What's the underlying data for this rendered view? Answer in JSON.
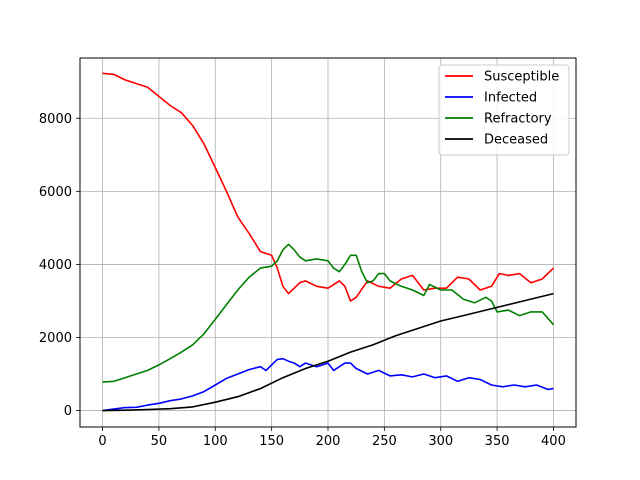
{
  "chart_data": {
    "type": "line",
    "title": "",
    "xlabel": "",
    "ylabel": "",
    "xlim": [
      -20,
      420
    ],
    "ylim": [
      -450,
      9650
    ],
    "xticks": [
      0,
      50,
      100,
      150,
      200,
      250,
      300,
      350,
      400
    ],
    "yticks": [
      0,
      2000,
      4000,
      6000,
      8000
    ],
    "grid": true,
    "legend_position": "top-right",
    "series": [
      {
        "name": "Susceptible",
        "color": "#ff0000",
        "points": [
          [
            0,
            9230
          ],
          [
            10,
            9200
          ],
          [
            20,
            9050
          ],
          [
            30,
            8950
          ],
          [
            40,
            8850
          ],
          [
            50,
            8600
          ],
          [
            60,
            8350
          ],
          [
            70,
            8150
          ],
          [
            80,
            7800
          ],
          [
            90,
            7300
          ],
          [
            100,
            6650
          ],
          [
            110,
            6000
          ],
          [
            120,
            5300
          ],
          [
            130,
            4850
          ],
          [
            140,
            4350
          ],
          [
            150,
            4250
          ],
          [
            155,
            3900
          ],
          [
            160,
            3400
          ],
          [
            165,
            3200
          ],
          [
            170,
            3350
          ],
          [
            175,
            3500
          ],
          [
            180,
            3550
          ],
          [
            190,
            3400
          ],
          [
            200,
            3350
          ],
          [
            210,
            3550
          ],
          [
            215,
            3400
          ],
          [
            220,
            3000
          ],
          [
            225,
            3100
          ],
          [
            235,
            3550
          ],
          [
            245,
            3400
          ],
          [
            255,
            3350
          ],
          [
            265,
            3600
          ],
          [
            275,
            3700
          ],
          [
            285,
            3300
          ],
          [
            295,
            3350
          ],
          [
            305,
            3350
          ],
          [
            315,
            3650
          ],
          [
            325,
            3600
          ],
          [
            335,
            3300
          ],
          [
            345,
            3400
          ],
          [
            352,
            3750
          ],
          [
            360,
            3700
          ],
          [
            370,
            3750
          ],
          [
            380,
            3500
          ],
          [
            390,
            3600
          ],
          [
            400,
            3900
          ]
        ]
      },
      {
        "name": "Infected",
        "color": "#0000ff",
        "points": [
          [
            0,
            0
          ],
          [
            10,
            40
          ],
          [
            20,
            80
          ],
          [
            30,
            90
          ],
          [
            40,
            150
          ],
          [
            50,
            200
          ],
          [
            60,
            270
          ],
          [
            70,
            320
          ],
          [
            80,
            400
          ],
          [
            90,
            520
          ],
          [
            100,
            700
          ],
          [
            110,
            880
          ],
          [
            120,
            1000
          ],
          [
            130,
            1120
          ],
          [
            140,
            1200
          ],
          [
            145,
            1100
          ],
          [
            150,
            1250
          ],
          [
            155,
            1400
          ],
          [
            160,
            1420
          ],
          [
            165,
            1350
          ],
          [
            170,
            1300
          ],
          [
            175,
            1200
          ],
          [
            180,
            1300
          ],
          [
            190,
            1200
          ],
          [
            200,
            1300
          ],
          [
            205,
            1100
          ],
          [
            215,
            1300
          ],
          [
            220,
            1300
          ],
          [
            225,
            1150
          ],
          [
            235,
            1000
          ],
          [
            245,
            1100
          ],
          [
            255,
            950
          ],
          [
            265,
            980
          ],
          [
            275,
            920
          ],
          [
            285,
            1000
          ],
          [
            295,
            900
          ],
          [
            305,
            950
          ],
          [
            315,
            800
          ],
          [
            325,
            900
          ],
          [
            335,
            850
          ],
          [
            345,
            700
          ],
          [
            355,
            650
          ],
          [
            365,
            700
          ],
          [
            375,
            650
          ],
          [
            385,
            700
          ],
          [
            395,
            580
          ],
          [
            400,
            600
          ]
        ]
      },
      {
        "name": "Refractory",
        "color": "#008000",
        "points": [
          [
            0,
            780
          ],
          [
            10,
            800
          ],
          [
            20,
            900
          ],
          [
            30,
            1000
          ],
          [
            40,
            1100
          ],
          [
            50,
            1250
          ],
          [
            60,
            1420
          ],
          [
            70,
            1600
          ],
          [
            80,
            1800
          ],
          [
            90,
            2100
          ],
          [
            100,
            2500
          ],
          [
            110,
            2900
          ],
          [
            120,
            3300
          ],
          [
            130,
            3650
          ],
          [
            140,
            3900
          ],
          [
            150,
            3950
          ],
          [
            155,
            4100
          ],
          [
            160,
            4400
          ],
          [
            165,
            4550
          ],
          [
            170,
            4400
          ],
          [
            175,
            4200
          ],
          [
            180,
            4100
          ],
          [
            190,
            4150
          ],
          [
            200,
            4100
          ],
          [
            205,
            3900
          ],
          [
            210,
            3800
          ],
          [
            215,
            4000
          ],
          [
            220,
            4250
          ],
          [
            225,
            4250
          ],
          [
            230,
            3800
          ],
          [
            235,
            3500
          ],
          [
            240,
            3550
          ],
          [
            245,
            3750
          ],
          [
            250,
            3750
          ],
          [
            255,
            3550
          ],
          [
            265,
            3400
          ],
          [
            275,
            3300
          ],
          [
            285,
            3150
          ],
          [
            290,
            3450
          ],
          [
            300,
            3300
          ],
          [
            310,
            3300
          ],
          [
            320,
            3050
          ],
          [
            330,
            2950
          ],
          [
            340,
            3100
          ],
          [
            345,
            3000
          ],
          [
            350,
            2700
          ],
          [
            360,
            2750
          ],
          [
            370,
            2600
          ],
          [
            380,
            2700
          ],
          [
            390,
            2700
          ],
          [
            400,
            2350
          ]
        ]
      },
      {
        "name": "Deceased",
        "color": "#000000",
        "points": [
          [
            0,
            0
          ],
          [
            20,
            10
          ],
          [
            40,
            30
          ],
          [
            60,
            50
          ],
          [
            80,
            100
          ],
          [
            100,
            230
          ],
          [
            120,
            380
          ],
          [
            140,
            600
          ],
          [
            160,
            900
          ],
          [
            180,
            1150
          ],
          [
            200,
            1350
          ],
          [
            220,
            1600
          ],
          [
            240,
            1800
          ],
          [
            260,
            2050
          ],
          [
            280,
            2250
          ],
          [
            300,
            2450
          ],
          [
            320,
            2600
          ],
          [
            340,
            2750
          ],
          [
            360,
            2900
          ],
          [
            380,
            3050
          ],
          [
            400,
            3200
          ]
        ]
      }
    ]
  }
}
